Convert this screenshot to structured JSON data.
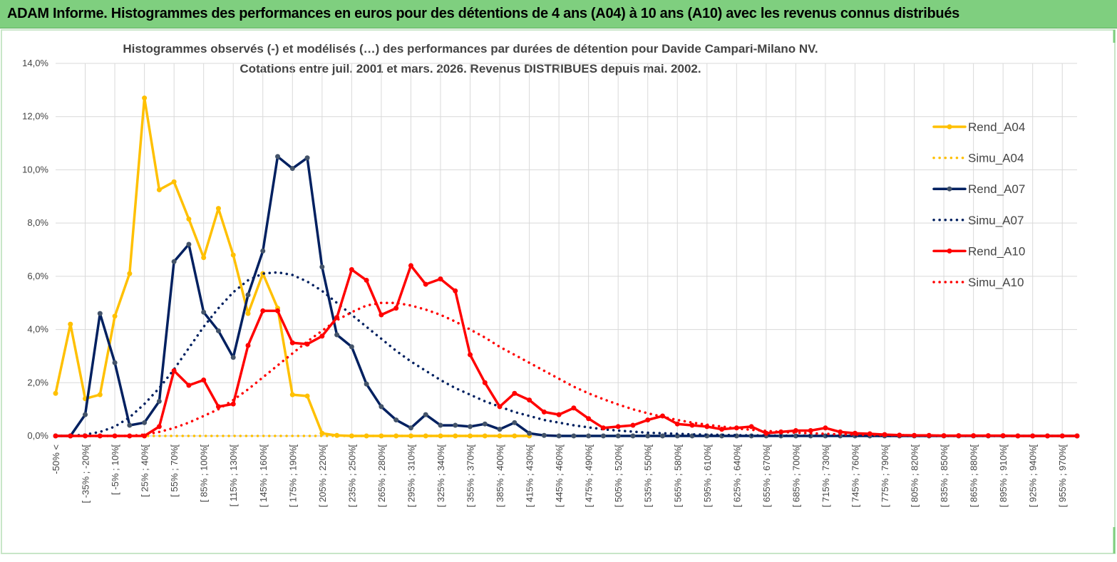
{
  "header": {
    "title": "ADAM Informe. Histogrammes des performances en euros pour des détentions de 4 ans (A04) à 10 ans (A10) avec les revenus connus distribués"
  },
  "chart_data": {
    "type": "line",
    "title": "Histogrammes observés (-) et modélisés (…) des performances par durées de détention pour Davide Campari-Milano NV.",
    "subtitle": "Cotations entre juil. 2001 et mars. 2026. Revenus DISTRIBUES depuis mai. 2002.",
    "categories": [
      "-50% <",
      null,
      "[ -35% ; -20%[",
      null,
      "[ -5% ; 10%[",
      null,
      "[ 25% ; 40%[",
      null,
      "[ 55% ; 70%[",
      null,
      "[ 85% ; 100%[",
      null,
      "[ 115% ; 130%[",
      null,
      "[ 145% ; 160%[",
      null,
      "[ 175% ; 190%[",
      null,
      "[ 205% ; 220%[",
      null,
      "[ 235% ; 250%[",
      null,
      "[ 265% ; 280%[",
      null,
      "[ 295% ; 310%[",
      null,
      "[ 325% ; 340%[",
      null,
      "[ 355% ; 370%[",
      null,
      "[ 385% ; 400%[",
      null,
      "[ 415% ; 430%[",
      null,
      "[ 445% ; 460%[",
      null,
      "[ 475% ; 490%[",
      null,
      "[ 505% ; 520%[",
      null,
      "[ 535% ; 550%[",
      null,
      "[ 565% ; 580%[",
      null,
      "[ 595% ; 610%[",
      null,
      "[ 625% ; 640%[",
      null,
      "[ 655% ; 670%[",
      null,
      "[ 685% ; 700%[",
      null,
      "[ 715% ; 730%[",
      null,
      "[ 745% ; 760%[",
      null,
      "[ 775% ; 790%[",
      null,
      "[ 805% ; 820%[",
      null,
      "[ 835% ; 850%[",
      null,
      "[ 865% ; 880%[",
      null,
      "[ 895% ; 910%[",
      null,
      "[ 925% ; 940%[",
      null,
      "[ 955% ; 970%[",
      null
    ],
    "ylim": [
      0,
      14
    ],
    "yticks": [
      {
        "value": 0,
        "label": "0,0%"
      },
      {
        "value": 2,
        "label": "2,0%"
      },
      {
        "value": 4,
        "label": "4,0%"
      },
      {
        "value": 6,
        "label": "6,0%"
      },
      {
        "value": 8,
        "label": "8,0%"
      },
      {
        "value": 10,
        "label": "10,0%"
      },
      {
        "value": 12,
        "label": "12,0%"
      },
      {
        "value": 14,
        "label": "14,0%"
      }
    ],
    "grid": true,
    "legend": "right",
    "series": [
      {
        "name": "Rend_A04",
        "color": "#ffc000",
        "line_style": "solid",
        "markers": true,
        "values": [
          1.6,
          4.2,
          1.4,
          1.55,
          4.5,
          6.1,
          12.7,
          9.25,
          9.55,
          8.15,
          6.7,
          8.55,
          6.8,
          4.6,
          6.1,
          4.8,
          1.55,
          1.5,
          0.1,
          0.02,
          0,
          0,
          0,
          0,
          0,
          0,
          0,
          0,
          0,
          0,
          0,
          0,
          0,
          null,
          null,
          null,
          null,
          null,
          null,
          null,
          null,
          null,
          null,
          null,
          null,
          null,
          null,
          null,
          null,
          null,
          null,
          null,
          null,
          null,
          null,
          null,
          null,
          null,
          null,
          null,
          null,
          null,
          null,
          null,
          null,
          null,
          null,
          null,
          null,
          null
        ]
      },
      {
        "name": "Simu_A04",
        "color": "#ffc000",
        "line_style": "dotted",
        "markers": false,
        "values": [
          0,
          0,
          0,
          0,
          0,
          0,
          0,
          0,
          0,
          0,
          0,
          0,
          0,
          0,
          0,
          0,
          0,
          0,
          0,
          0,
          0,
          0,
          0,
          0,
          0,
          0,
          0,
          0,
          0,
          0,
          0,
          0,
          0,
          null,
          null,
          null,
          null,
          null,
          null,
          null,
          null,
          null,
          null,
          null,
          null,
          null,
          null,
          null,
          null,
          null,
          null,
          null,
          null,
          null,
          null,
          null,
          null,
          null,
          null,
          null,
          null,
          null,
          null,
          null,
          null,
          null,
          null,
          null,
          null,
          null
        ]
      },
      {
        "name": "Rend_A07",
        "color": "#002060",
        "line_style": "solid",
        "markers": true,
        "values": [
          0,
          0,
          0.8,
          4.6,
          2.75,
          0.4,
          0.5,
          1.3,
          6.55,
          7.2,
          4.65,
          3.95,
          2.95,
          5.3,
          6.95,
          10.5,
          10.05,
          10.45,
          6.35,
          3.8,
          3.35,
          1.95,
          1.1,
          0.6,
          0.3,
          0.8,
          0.4,
          0.4,
          0.35,
          0.45,
          0.25,
          0.5,
          0.1,
          0.02,
          0,
          0,
          0,
          0,
          0,
          0,
          0,
          0,
          0,
          0,
          0,
          0,
          0,
          0,
          0,
          0,
          0,
          0,
          0,
          0,
          0,
          0,
          0,
          0,
          0,
          0,
          0,
          0,
          0,
          0,
          0,
          0,
          0,
          0,
          0,
          0
        ]
      },
      {
        "name": "Simu_A07",
        "color": "#002060",
        "line_style": "dotted",
        "markers": false,
        "values": [
          0,
          0,
          0.05,
          0.15,
          0.35,
          0.7,
          1.2,
          1.8,
          2.5,
          3.3,
          4.1,
          4.8,
          5.4,
          5.85,
          6.1,
          6.15,
          6.05,
          5.8,
          5.45,
          5.0,
          4.55,
          4.1,
          3.65,
          3.2,
          2.8,
          2.45,
          2.1,
          1.8,
          1.55,
          1.3,
          1.1,
          0.9,
          0.75,
          0.6,
          0.5,
          0.4,
          0.32,
          0.25,
          0.2,
          0.16,
          0.12,
          0.1,
          0.08,
          0.06,
          0.05,
          0.04,
          0.03,
          0.02,
          0.02,
          0.01,
          0.01,
          0.01,
          0.01,
          0.01,
          0.01,
          0,
          0,
          0,
          0,
          0,
          0,
          0,
          0,
          0,
          0,
          0,
          0,
          0,
          0,
          0
        ]
      },
      {
        "name": "Rend_A10",
        "color": "#ff0000",
        "line_style": "solid",
        "markers": true,
        "values": [
          0,
          0,
          0,
          0,
          0,
          0,
          0,
          0.35,
          2.45,
          1.9,
          2.1,
          1.1,
          1.2,
          3.4,
          4.7,
          4.7,
          3.5,
          3.45,
          3.75,
          4.45,
          6.25,
          5.85,
          4.55,
          4.8,
          6.4,
          5.7,
          5.9,
          5.45,
          3.05,
          2.0,
          1.1,
          1.6,
          1.35,
          0.9,
          0.8,
          1.05,
          0.65,
          0.3,
          0.35,
          0.4,
          0.6,
          0.75,
          0.45,
          0.4,
          0.35,
          0.25,
          0.3,
          0.35,
          0.1,
          0.15,
          0.2,
          0.2,
          0.3,
          0.15,
          0.1,
          0.08,
          0.05,
          0.03,
          0.02,
          0.02,
          0.01,
          0.01,
          0.01,
          0.01,
          0.01,
          0,
          0,
          0,
          0,
          0
        ]
      },
      {
        "name": "Simu_A10",
        "color": "#ff0000",
        "line_style": "dotted",
        "markers": false,
        "values": [
          0,
          0,
          0,
          0,
          0,
          0,
          0.05,
          0.15,
          0.3,
          0.5,
          0.75,
          1.0,
          1.35,
          1.75,
          2.2,
          2.65,
          3.1,
          3.55,
          3.95,
          4.35,
          4.65,
          4.9,
          5.0,
          5.0,
          4.9,
          4.75,
          4.55,
          4.3,
          4.0,
          3.7,
          3.35,
          3.05,
          2.75,
          2.45,
          2.15,
          1.85,
          1.6,
          1.38,
          1.18,
          1.0,
          0.85,
          0.72,
          0.6,
          0.5,
          0.42,
          0.35,
          0.28,
          0.23,
          0.19,
          0.15,
          0.12,
          0.1,
          0.08,
          0.06,
          0.05,
          0.04,
          0.03,
          0.03,
          0.02,
          0.02,
          0.01,
          0.01,
          0.01,
          0.01,
          0,
          0,
          0,
          0,
          0,
          0
        ]
      }
    ]
  }
}
